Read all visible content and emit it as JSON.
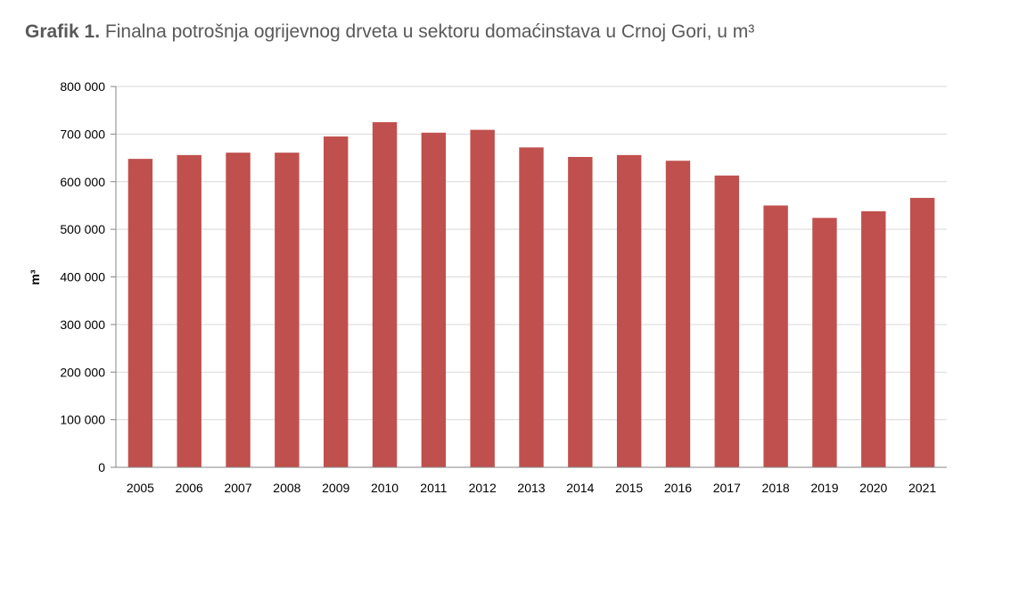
{
  "title": {
    "lead": "Grafik 1.",
    "text": "Finalna potrošnja ogrijevnog drveta u sektoru domaćinstava u Crnoj Gori, u m³"
  },
  "chart_data": {
    "type": "bar",
    "title": "Grafik 1. Finalna potrošnja ogrijevnog drveta u sektoru domaćinstava u Crnoj Gori, u m³",
    "xlabel": "",
    "ylabel": "m³",
    "ylim": [
      0,
      800000
    ],
    "yticks": [
      0,
      100000,
      200000,
      300000,
      400000,
      500000,
      600000,
      700000,
      800000
    ],
    "ytick_labels": [
      "0",
      "100 000",
      "200 000",
      "300 000",
      "400 000",
      "500 000",
      "600 000",
      "700 000",
      "800 000"
    ],
    "categories": [
      "2005",
      "2006",
      "2007",
      "2008",
      "2009",
      "2010",
      "2011",
      "2012",
      "2013",
      "2014",
      "2015",
      "2016",
      "2017",
      "2018",
      "2019",
      "2020",
      "2021"
    ],
    "values": [
      648000,
      656000,
      661000,
      661000,
      695000,
      725000,
      703000,
      709000,
      672000,
      652000,
      656000,
      644000,
      613000,
      550000,
      524000,
      538000,
      566000
    ],
    "grid": true,
    "legend": "none",
    "bar_color": "#c0504d",
    "grid_color": "#d9d9d9",
    "axis_color": "#868686"
  }
}
